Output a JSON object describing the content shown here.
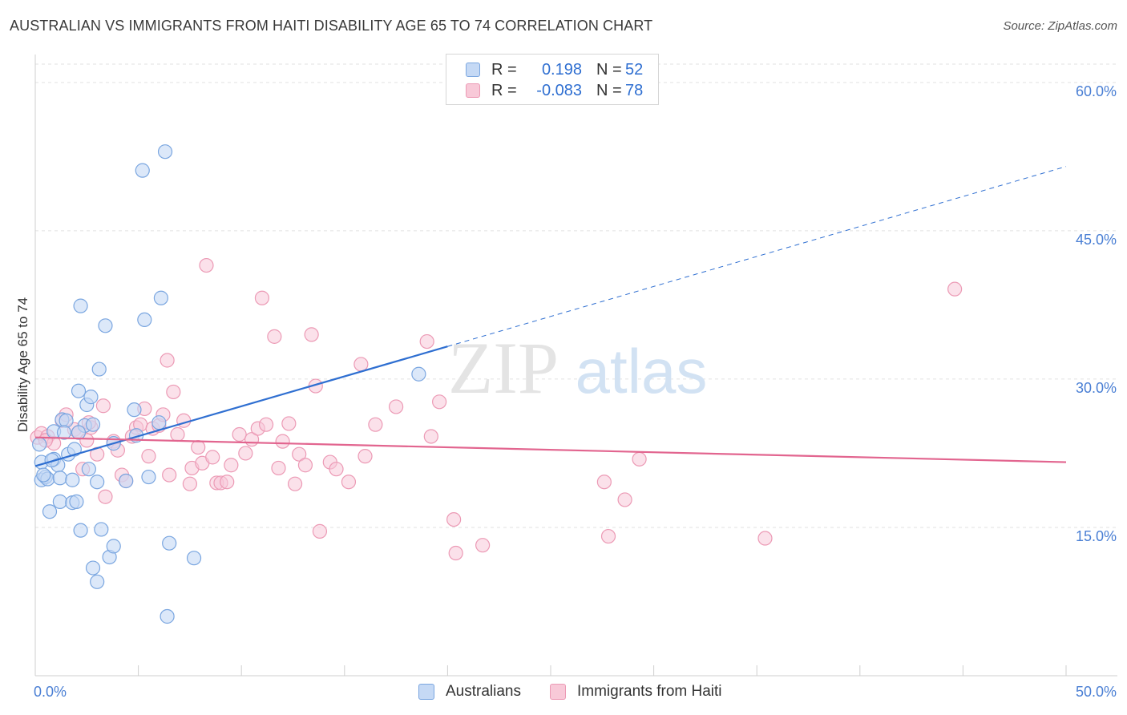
{
  "title": "AUSTRALIAN VS IMMIGRANTS FROM HAITI DISABILITY AGE 65 TO 74 CORRELATION CHART",
  "source": "Source: ZipAtlas.com",
  "watermark": {
    "zip": "ZIP",
    "atlas": "atlas"
  },
  "legend_top": [
    {
      "r_label": "R =",
      "r_value": "0.198",
      "n_label": "N =",
      "n_value": "52"
    },
    {
      "r_label": "R =",
      "r_value": "-0.083",
      "n_label": "N =",
      "n_value": "78"
    }
  ],
  "legend_bottom": [
    "Australians",
    "Immigrants from Haiti"
  ],
  "colors": {
    "blue_fill": "#c5d9f5",
    "blue_stroke": "#7aa6e0",
    "blue_line": "#2f6fd1",
    "pink_fill": "#f8c9d8",
    "pink_stroke": "#ec9ab5",
    "pink_line": "#e2658f",
    "axis_text": "#4a7fd4",
    "grid": "#e2e2e2"
  },
  "chart_data": {
    "type": "scatter",
    "title": "AUSTRALIAN VS IMMIGRANTS FROM HAITI DISABILITY AGE 65 TO 74 CORRELATION CHART",
    "xlabel": "",
    "ylabel": "Disability Age 65 to 74",
    "xlim": [
      0,
      50
    ],
    "ylim": [
      0,
      62.5
    ],
    "x_tick_labels": [
      "0.0%",
      "50.0%"
    ],
    "y_ticks": [
      15,
      30,
      45,
      60
    ],
    "y_tick_labels": [
      "15.0%",
      "30.0%",
      "45.0%",
      "60.0%"
    ],
    "series": [
      {
        "name": "Australians",
        "r": 0.198,
        "n": 52,
        "trend": {
          "x0": 0,
          "y0": 21.2,
          "x1": 20,
          "y1": 33.3,
          "dash_to_x": 50,
          "dash_to_y": 51.5
        },
        "points": [
          [
            0.2,
            23.4
          ],
          [
            0.3,
            21.6
          ],
          [
            0.3,
            19.8
          ],
          [
            0.5,
            20.1
          ],
          [
            0.6,
            19.9
          ],
          [
            0.7,
            16.6
          ],
          [
            0.9,
            21.9
          ],
          [
            0.9,
            24.7
          ],
          [
            1.1,
            21.3
          ],
          [
            1.2,
            20.0
          ],
          [
            1.2,
            17.6
          ],
          [
            1.3,
            25.9
          ],
          [
            1.5,
            25.8
          ],
          [
            1.6,
            22.4
          ],
          [
            1.8,
            19.8
          ],
          [
            1.8,
            17.5
          ],
          [
            1.9,
            22.9
          ],
          [
            2.0,
            17.6
          ],
          [
            2.1,
            28.8
          ],
          [
            2.2,
            14.7
          ],
          [
            2.2,
            37.4
          ],
          [
            2.4,
            25.3
          ],
          [
            2.5,
            27.4
          ],
          [
            2.6,
            20.9
          ],
          [
            2.7,
            28.2
          ],
          [
            2.8,
            25.4
          ],
          [
            2.8,
            10.9
          ],
          [
            3.0,
            19.6
          ],
          [
            3.0,
            9.5
          ],
          [
            3.1,
            31.0
          ],
          [
            3.2,
            14.8
          ],
          [
            3.4,
            35.4
          ],
          [
            3.6,
            12.0
          ],
          [
            3.8,
            13.1
          ],
          [
            3.8,
            23.5
          ],
          [
            4.4,
            19.7
          ],
          [
            4.8,
            26.9
          ],
          [
            5.2,
            51.1
          ],
          [
            5.3,
            36.0
          ],
          [
            5.5,
            20.1
          ],
          [
            6.0,
            25.6
          ],
          [
            6.1,
            38.2
          ],
          [
            6.3,
            53.0
          ],
          [
            6.4,
            6.0
          ],
          [
            6.5,
            13.4
          ],
          [
            7.7,
            11.9
          ],
          [
            18.6,
            30.5
          ],
          [
            1.4,
            24.6
          ],
          [
            0.4,
            20.3
          ],
          [
            2.1,
            24.6
          ],
          [
            4.9,
            24.3
          ],
          [
            0.8,
            21.8
          ]
        ]
      },
      {
        "name": "Immigrants from Haiti",
        "r": -0.083,
        "n": 78,
        "trend": {
          "x0": 0,
          "y0": 24.1,
          "x1": 50,
          "y1": 21.6
        },
        "points": [
          [
            0.1,
            24.1
          ],
          [
            0.3,
            24.5
          ],
          [
            0.6,
            24.2
          ],
          [
            0.9,
            23.5
          ],
          [
            1.3,
            25.8
          ],
          [
            1.5,
            26.4
          ],
          [
            1.9,
            24.9
          ],
          [
            2.1,
            24.6
          ],
          [
            2.3,
            20.9
          ],
          [
            2.5,
            23.8
          ],
          [
            2.7,
            25.1
          ],
          [
            3.0,
            22.4
          ],
          [
            3.3,
            27.3
          ],
          [
            3.4,
            18.1
          ],
          [
            3.8,
            23.7
          ],
          [
            4.0,
            22.8
          ],
          [
            4.2,
            20.3
          ],
          [
            4.4,
            19.7
          ],
          [
            4.7,
            24.2
          ],
          [
            4.9,
            25.1
          ],
          [
            5.1,
            25.4
          ],
          [
            5.3,
            27.0
          ],
          [
            5.5,
            22.2
          ],
          [
            5.7,
            25.0
          ],
          [
            6.0,
            25.3
          ],
          [
            6.2,
            26.4
          ],
          [
            6.4,
            31.9
          ],
          [
            6.5,
            20.3
          ],
          [
            6.7,
            28.7
          ],
          [
            6.9,
            24.4
          ],
          [
            7.2,
            25.8
          ],
          [
            7.5,
            19.4
          ],
          [
            7.6,
            21.0
          ],
          [
            7.9,
            23.1
          ],
          [
            8.1,
            21.5
          ],
          [
            8.3,
            41.5
          ],
          [
            8.6,
            22.1
          ],
          [
            8.8,
            19.5
          ],
          [
            9.0,
            19.5
          ],
          [
            9.3,
            19.6
          ],
          [
            9.5,
            21.3
          ],
          [
            9.9,
            24.4
          ],
          [
            10.2,
            22.5
          ],
          [
            10.5,
            23.9
          ],
          [
            10.8,
            25.0
          ],
          [
            11.0,
            38.2
          ],
          [
            11.2,
            25.4
          ],
          [
            11.6,
            34.3
          ],
          [
            11.8,
            21.0
          ],
          [
            12.0,
            23.7
          ],
          [
            12.3,
            25.5
          ],
          [
            12.6,
            19.4
          ],
          [
            12.8,
            22.4
          ],
          [
            13.1,
            21.3
          ],
          [
            13.4,
            34.5
          ],
          [
            13.6,
            29.3
          ],
          [
            13.8,
            14.6
          ],
          [
            14.3,
            21.6
          ],
          [
            14.6,
            20.9
          ],
          [
            15.2,
            19.6
          ],
          [
            15.8,
            31.5
          ],
          [
            16.0,
            22.2
          ],
          [
            16.5,
            25.4
          ],
          [
            17.5,
            27.2
          ],
          [
            19.0,
            33.8
          ],
          [
            19.2,
            24.2
          ],
          [
            19.6,
            27.7
          ],
          [
            20.3,
            15.8
          ],
          [
            20.4,
            12.4
          ],
          [
            21.7,
            13.2
          ],
          [
            27.6,
            19.6
          ],
          [
            27.8,
            14.1
          ],
          [
            28.6,
            17.8
          ],
          [
            29.3,
            21.9
          ],
          [
            35.4,
            13.9
          ],
          [
            44.6,
            39.1
          ],
          [
            0.5,
            23.8
          ],
          [
            2.6,
            25.6
          ]
        ]
      }
    ]
  }
}
